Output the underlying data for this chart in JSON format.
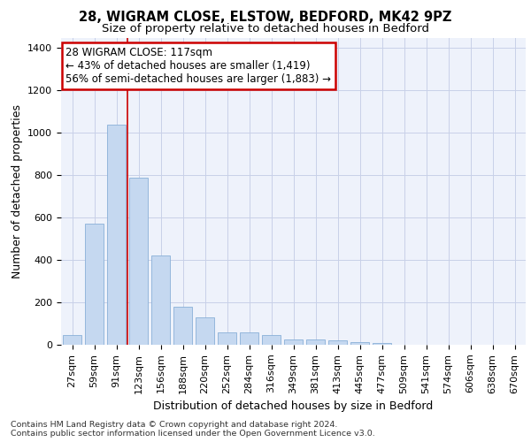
{
  "title_line1": "28, WIGRAM CLOSE, ELSTOW, BEDFORD, MK42 9PZ",
  "title_line2": "Size of property relative to detached houses in Bedford",
  "xlabel": "Distribution of detached houses by size in Bedford",
  "ylabel": "Number of detached properties",
  "categories": [
    "27sqm",
    "59sqm",
    "91sqm",
    "123sqm",
    "156sqm",
    "188sqm",
    "220sqm",
    "252sqm",
    "284sqm",
    "316sqm",
    "349sqm",
    "381sqm",
    "413sqm",
    "445sqm",
    "477sqm",
    "509sqm",
    "541sqm",
    "574sqm",
    "606sqm",
    "638sqm",
    "670sqm"
  ],
  "values": [
    45,
    572,
    1040,
    790,
    420,
    180,
    128,
    60,
    58,
    45,
    27,
    27,
    20,
    14,
    7,
    0,
    0,
    0,
    0,
    0,
    0
  ],
  "bar_color": "#c5d8f0",
  "bar_edge_color": "#8ab0d8",
  "red_line_x": 2.5,
  "annotation_title": "28 WIGRAM CLOSE: 117sqm",
  "annotation_line1": "← 43% of detached houses are smaller (1,419)",
  "annotation_line2": "56% of semi-detached houses are larger (1,883) →",
  "annotation_box_facecolor": "#ffffff",
  "annotation_border_color": "#cc0000",
  "ylim": [
    0,
    1450
  ],
  "yticks": [
    0,
    200,
    400,
    600,
    800,
    1000,
    1200,
    1400
  ],
  "footer_line1": "Contains HM Land Registry data © Crown copyright and database right 2024.",
  "footer_line2": "Contains public sector information licensed under the Open Government Licence v3.0.",
  "bg_color": "#eef2fb",
  "grid_color": "#c8d0e8",
  "title1_fontsize": 10.5,
  "title2_fontsize": 9.5,
  "axis_label_fontsize": 9,
  "tick_fontsize": 8,
  "footer_fontsize": 6.8,
  "annotation_fontsize": 8.5
}
